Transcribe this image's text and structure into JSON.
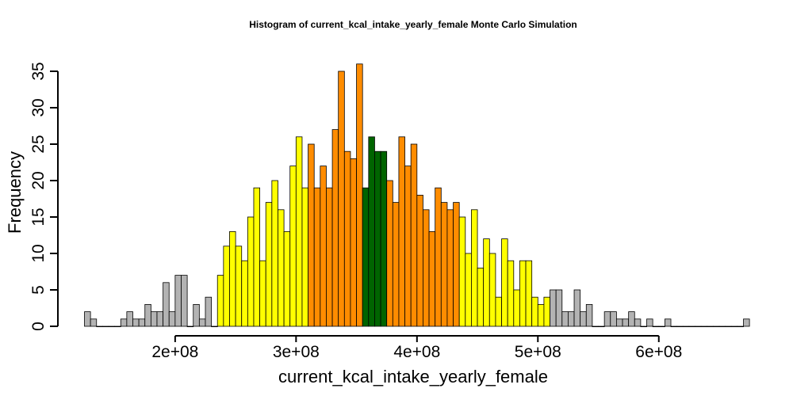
{
  "chart_data": {
    "type": "bar",
    "title": "Histogram of  current_kcal_intake_yearly_female  Monte Carlo Simulation",
    "xlabel": "current_kcal_intake_yearly_female",
    "ylabel": "Frequency",
    "x_start": 125000000,
    "bin_width": 5000000,
    "xlim": [
      125000000,
      670000000
    ],
    "ylim": [
      0,
      36
    ],
    "x_ticks": [
      200000000,
      300000000,
      400000000,
      500000000,
      600000000
    ],
    "x_tick_labels": [
      "2e+08",
      "3e+08",
      "4e+08",
      "5e+08",
      "6e+08"
    ],
    "y_ticks": [
      0,
      5,
      10,
      15,
      20,
      25,
      30,
      35
    ],
    "y_tick_labels": [
      "0",
      "5",
      "10",
      "15",
      "20",
      "25",
      "30",
      "35"
    ],
    "grid": false,
    "colors": {
      "gray": "#b3b3b3",
      "yellow": "#ffff00",
      "orange": "#ff8c00",
      "green": "#006400"
    },
    "values": [
      2,
      1,
      0,
      0,
      0,
      0,
      1,
      2,
      1,
      1,
      3,
      2,
      2,
      6,
      2,
      7,
      7,
      0,
      3,
      1,
      4,
      0,
      7,
      11,
      13,
      11,
      9,
      15,
      19,
      9,
      17,
      20,
      16,
      13,
      22,
      26,
      19,
      25,
      19,
      22,
      19,
      27,
      35,
      24,
      23,
      36,
      19,
      26,
      24,
      24,
      20,
      17,
      26,
      22,
      25,
      18,
      16,
      13,
      19,
      17,
      16,
      17,
      15,
      10,
      16,
      8,
      12,
      10,
      4,
      12,
      9,
      5,
      9,
      9,
      4,
      3,
      4,
      5,
      5,
      2,
      2,
      5,
      2,
      3,
      0,
      0,
      2,
      2,
      1,
      1,
      2,
      1,
      0,
      1,
      0,
      0,
      1,
      0,
      0,
      0,
      0,
      0,
      0,
      0,
      0,
      0,
      0,
      0,
      0,
      1
    ],
    "bar_colors": [
      "gray",
      "gray",
      "gray",
      "gray",
      "gray",
      "gray",
      "gray",
      "gray",
      "gray",
      "gray",
      "gray",
      "gray",
      "gray",
      "gray",
      "gray",
      "gray",
      "gray",
      "gray",
      "gray",
      "gray",
      "gray",
      "yellow",
      "yellow",
      "yellow",
      "yellow",
      "yellow",
      "yellow",
      "yellow",
      "yellow",
      "yellow",
      "yellow",
      "yellow",
      "yellow",
      "yellow",
      "yellow",
      "yellow",
      "yellow",
      "orange",
      "orange",
      "orange",
      "orange",
      "orange",
      "orange",
      "orange",
      "orange",
      "orange",
      "green",
      "green",
      "green",
      "green",
      "orange",
      "orange",
      "orange",
      "orange",
      "orange",
      "orange",
      "orange",
      "orange",
      "orange",
      "orange",
      "orange",
      "orange",
      "yellow",
      "yellow",
      "yellow",
      "yellow",
      "yellow",
      "yellow",
      "yellow",
      "yellow",
      "yellow",
      "yellow",
      "yellow",
      "yellow",
      "yellow",
      "yellow",
      "yellow",
      "gray",
      "gray",
      "gray",
      "gray",
      "gray",
      "gray",
      "gray",
      "gray",
      "gray",
      "gray",
      "gray",
      "gray",
      "gray",
      "gray",
      "gray",
      "gray",
      "gray",
      "gray",
      "gray",
      "gray",
      "gray",
      "gray",
      "gray",
      "gray",
      "gray",
      "gray",
      "gray",
      "gray",
      "gray",
      "gray",
      "gray",
      "gray",
      "gray",
      "gray"
    ]
  }
}
